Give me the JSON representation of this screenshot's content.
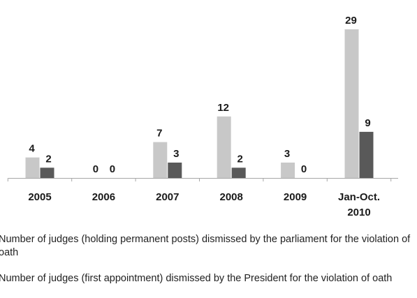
{
  "chart_data": {
    "type": "bar",
    "categories": [
      "2005",
      "2006",
      "2007",
      "2008",
      "2009",
      "Jan-Oct.\n2010"
    ],
    "series": [
      {
        "name": "Number of judges (holding permanent posts) dismissed by the parliament for the violation of oath",
        "values": [
          4,
          0,
          7,
          12,
          3,
          29
        ],
        "color": "#c8c8c8"
      },
      {
        "name": "Number of judges (first appointment) dismissed by the President for the violation of oath",
        "values": [
          2,
          0,
          3,
          2,
          0,
          9
        ],
        "color": "#595959"
      }
    ],
    "ylim": [
      0,
      29
    ],
    "grid": false,
    "legend_position": "bottom",
    "title": "",
    "xlabel": "",
    "ylabel": ""
  }
}
